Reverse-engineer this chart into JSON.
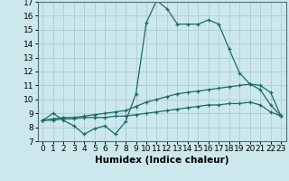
{
  "title": "",
  "xlabel": "Humidex (Indice chaleur)",
  "bg_color": "#cce8ec",
  "grid_color": "#aacdd4",
  "line_color": "#1a6b6b",
  "xlim": [
    -0.5,
    23.5
  ],
  "ylim": [
    7,
    17
  ],
  "xticks": [
    0,
    1,
    2,
    3,
    4,
    5,
    6,
    7,
    8,
    9,
    10,
    11,
    12,
    13,
    14,
    15,
    16,
    17,
    18,
    19,
    20,
    21,
    22,
    23
  ],
  "yticks": [
    7,
    8,
    9,
    10,
    11,
    12,
    13,
    14,
    15,
    16,
    17
  ],
  "line1_x": [
    0,
    1,
    2,
    3,
    4,
    5,
    6,
    7,
    8,
    9,
    10,
    11,
    12,
    13,
    14,
    15,
    16,
    17,
    18,
    19,
    20,
    21,
    22,
    23
  ],
  "line1_y": [
    8.5,
    9.0,
    8.5,
    8.1,
    7.5,
    7.9,
    8.1,
    7.5,
    8.4,
    10.4,
    15.5,
    17.1,
    16.5,
    15.4,
    15.4,
    15.4,
    15.7,
    15.4,
    13.6,
    11.9,
    11.1,
    10.7,
    9.6,
    8.8
  ],
  "line2_x": [
    0,
    1,
    2,
    3,
    4,
    5,
    6,
    7,
    8,
    9,
    10,
    11,
    12,
    13,
    14,
    15,
    16,
    17,
    18,
    19,
    20,
    21,
    22,
    23
  ],
  "line2_y": [
    8.5,
    8.6,
    8.7,
    8.7,
    8.8,
    8.9,
    9.0,
    9.1,
    9.2,
    9.5,
    9.8,
    10.0,
    10.2,
    10.4,
    10.5,
    10.6,
    10.7,
    10.8,
    10.9,
    11.0,
    11.1,
    11.0,
    10.5,
    8.8
  ],
  "line3_x": [
    0,
    1,
    2,
    3,
    4,
    5,
    6,
    7,
    8,
    9,
    10,
    11,
    12,
    13,
    14,
    15,
    16,
    17,
    18,
    19,
    20,
    21,
    22,
    23
  ],
  "line3_y": [
    8.5,
    8.5,
    8.6,
    8.6,
    8.7,
    8.7,
    8.7,
    8.8,
    8.8,
    8.9,
    9.0,
    9.1,
    9.2,
    9.3,
    9.4,
    9.5,
    9.6,
    9.6,
    9.7,
    9.7,
    9.8,
    9.6,
    9.1,
    8.8
  ],
  "tick_fontsize": 6.5,
  "xlabel_fontsize": 7.5
}
